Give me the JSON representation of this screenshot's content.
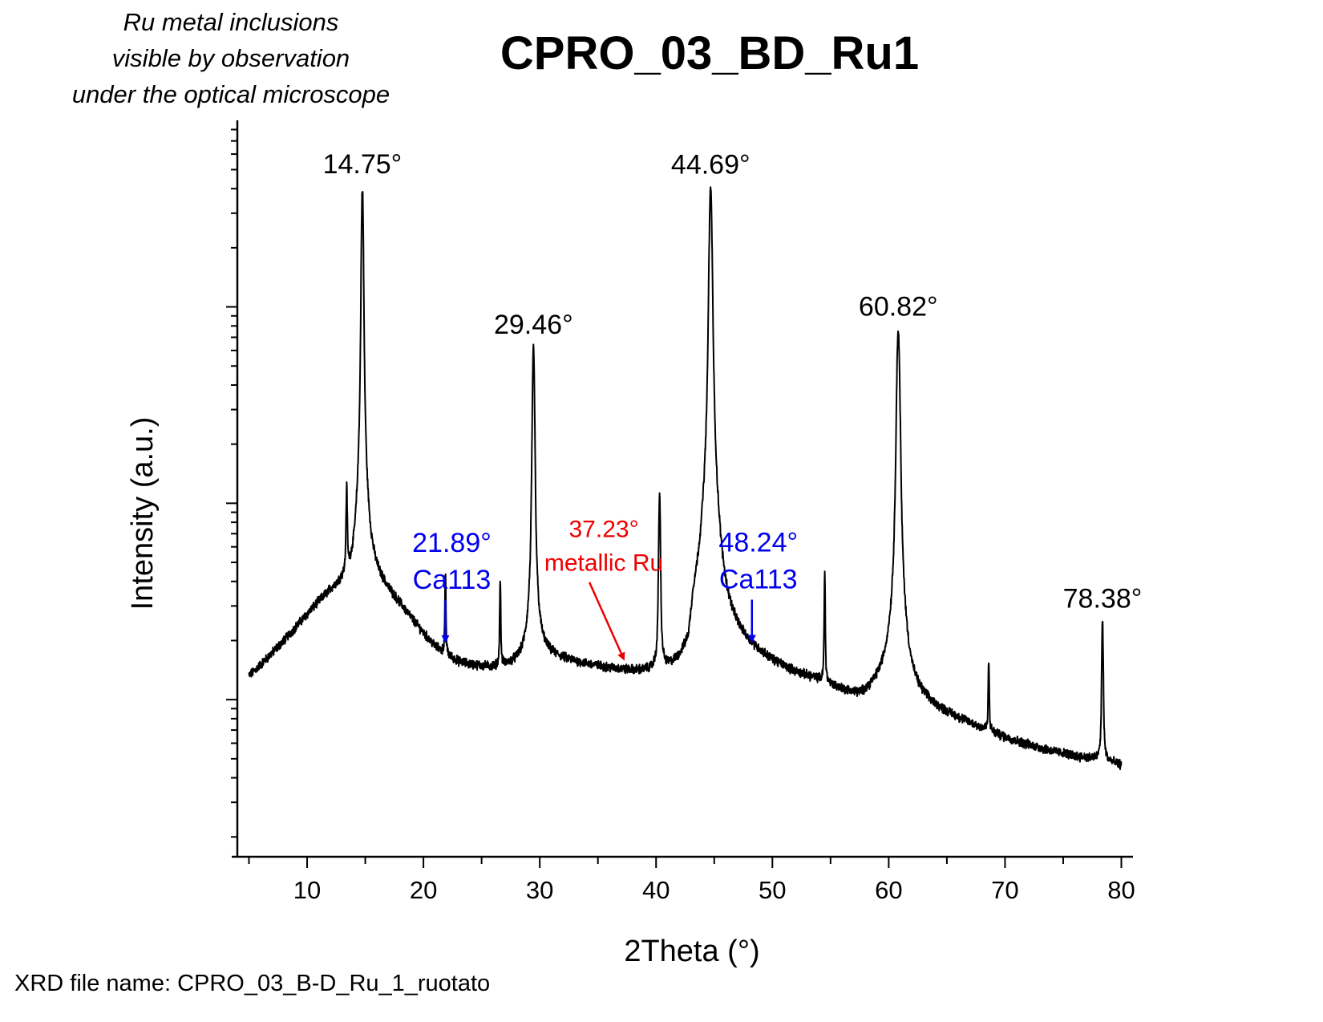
{
  "title": "CPRO_03_BD_Ru1",
  "note_lines": [
    "Ru metal inclusions",
    "visible by observation",
    "under the optical microscope"
  ],
  "footer": "XRD file name: CPRO_03_B-D_Ru_1_ruotato",
  "colors": {
    "line": "#000000",
    "blue_annotation": "#0000ee",
    "red_annotation": "#ee0000"
  },
  "chart_data": {
    "type": "line",
    "xlabel": "2Theta (°)",
    "ylabel": "Intensity (a.u.)",
    "y_scale": "log",
    "y_tick_labels_shown": false,
    "xlim": [
      4,
      81
    ],
    "x_ticks": [
      10,
      20,
      30,
      40,
      50,
      60,
      70,
      80
    ],
    "grid": false,
    "x_range": [
      5,
      80
    ],
    "background": [
      [
        5,
        0.13
      ],
      [
        6,
        0.148
      ],
      [
        7,
        0.17
      ],
      [
        8,
        0.196
      ],
      [
        9,
        0.228
      ],
      [
        10,
        0.265
      ],
      [
        11,
        0.305
      ],
      [
        12,
        0.345
      ],
      [
        13,
        0.37
      ],
      [
        14,
        0.375
      ],
      [
        15,
        0.455
      ],
      [
        16,
        0.39
      ],
      [
        17,
        0.34
      ],
      [
        18,
        0.295
      ],
      [
        19,
        0.25
      ],
      [
        20,
        0.212
      ],
      [
        21,
        0.182
      ],
      [
        22,
        0.165
      ],
      [
        23,
        0.153
      ],
      [
        24,
        0.148
      ],
      [
        25,
        0.145
      ],
      [
        26,
        0.143
      ],
      [
        27,
        0.145
      ],
      [
        28,
        0.15
      ],
      [
        29,
        0.16
      ],
      [
        30,
        0.17
      ],
      [
        32,
        0.158
      ],
      [
        34,
        0.148
      ],
      [
        36,
        0.14
      ],
      [
        38,
        0.133
      ],
      [
        39.8,
        0.128
      ],
      [
        41,
        0.123
      ],
      [
        42.8,
        0.118
      ],
      [
        43.2,
        0.215
      ],
      [
        44,
        0.28
      ],
      [
        46,
        0.2
      ],
      [
        48,
        0.17
      ],
      [
        50,
        0.148
      ],
      [
        52,
        0.132
      ],
      [
        54,
        0.122
      ],
      [
        56,
        0.108
      ],
      [
        57.5,
        0.1
      ],
      [
        58.3,
        0.105
      ],
      [
        59,
        0.112
      ],
      [
        60,
        0.125
      ],
      [
        62,
        0.1
      ],
      [
        64,
        0.087
      ],
      [
        66,
        0.078
      ],
      [
        68,
        0.07
      ],
      [
        70,
        0.063
      ],
      [
        72,
        0.058
      ],
      [
        74,
        0.054
      ],
      [
        76,
        0.051
      ],
      [
        78,
        0.049
      ],
      [
        80,
        0.046
      ]
    ],
    "peaks": [
      {
        "x": 13.4,
        "y": 0.75,
        "w": 0.06
      },
      {
        "x": 14.75,
        "y": 40,
        "w": 0.09
      },
      {
        "x": 21.89,
        "y": 0.25,
        "w": 0.05
      },
      {
        "x": 26.6,
        "y": 0.26,
        "w": 0.05
      },
      {
        "x": 29.46,
        "y": 6,
        "w": 0.1
      },
      {
        "x": 40.3,
        "y": 0.95,
        "w": 0.08
      },
      {
        "x": 44.69,
        "y": 40,
        "w": 0.13
      },
      {
        "x": 54.5,
        "y": 0.31,
        "w": 0.05
      },
      {
        "x": 60.82,
        "y": 7.5,
        "w": 0.14
      },
      {
        "x": 68.6,
        "y": 0.085,
        "w": 0.05
      },
      {
        "x": 78.38,
        "y": 0.2,
        "w": 0.07
      }
    ],
    "noise_amplitude": 0.045,
    "peak_labels": [
      {
        "text": "14.75°",
        "x": 14.75,
        "color": "black"
      },
      {
        "text": "29.46°",
        "x": 29.46,
        "color": "black"
      },
      {
        "text": "44.69°",
        "x": 44.69,
        "color": "black"
      },
      {
        "text": "60.82°",
        "x": 60.82,
        "color": "black"
      },
      {
        "text": "78.38°",
        "x": 78.38,
        "color": "black"
      }
    ],
    "annotations": [
      {
        "lines": [
          "21.89°",
          "Ca113"
        ],
        "x": 21.89,
        "color": "blue"
      },
      {
        "lines": [
          "37.23°",
          "metallic Ru"
        ],
        "x": 37.23,
        "color": "red"
      },
      {
        "lines": [
          "48.24°",
          "Ca113"
        ],
        "x": 48.24,
        "color": "blue"
      }
    ]
  }
}
